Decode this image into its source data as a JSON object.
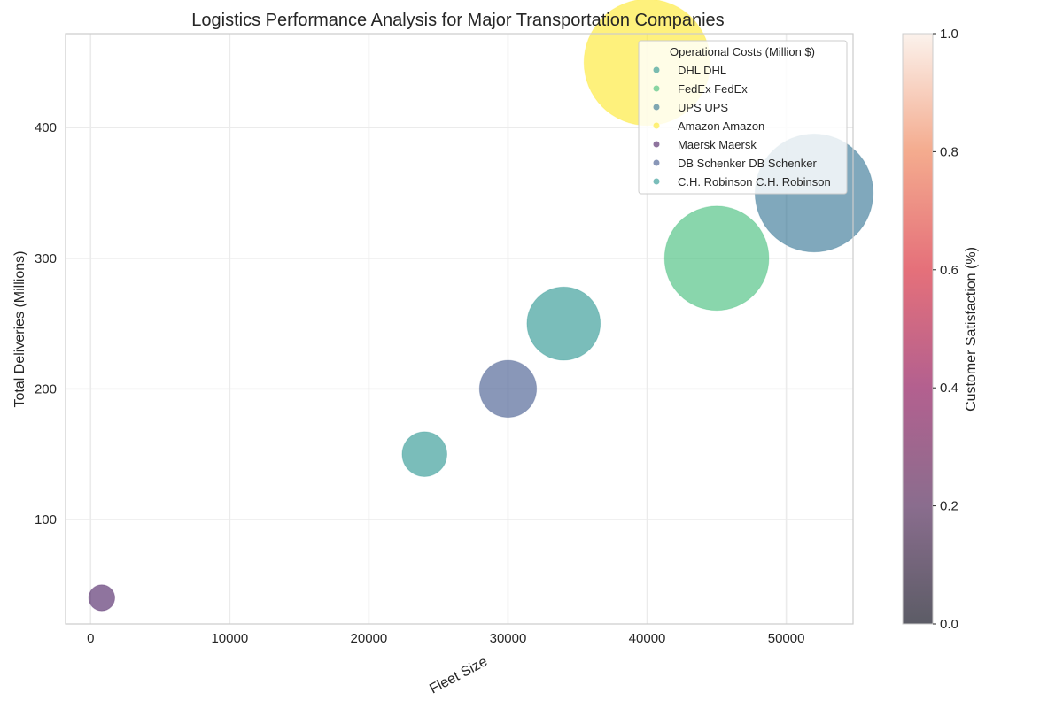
{
  "chart_data": {
    "type": "scatter",
    "title": "Logistics Performance Analysis for Major Transportation Companies",
    "xlabel": "Fleet Size",
    "ylabel": "Total Deliveries (Millions)",
    "xlim": [
      -1800,
      54800
    ],
    "ylim": [
      20,
      472
    ],
    "x_ticks": [
      0,
      10000,
      20000,
      30000,
      40000,
      50000
    ],
    "y_ticks": [
      100,
      200,
      300,
      400
    ],
    "grid": true,
    "legend": {
      "title": "Operational Costs (Million $)",
      "placement": "top-right",
      "entries": [
        "DHL DHL",
        "FedEx FedEx",
        "UPS UPS",
        "Amazon Amazon",
        "Maersk Maersk",
        "DB Schenker DB Schenker",
        "C.H. Robinson C.H. Robinson"
      ]
    },
    "colorbar": {
      "label": "Customer Satisfaction (%)",
      "ticks": [
        0.0,
        0.2,
        0.4,
        0.6,
        0.8,
        1.0
      ],
      "tick_labels": [
        "0.0",
        "0.2",
        "0.4",
        "0.6",
        "0.8",
        "1.0"
      ],
      "range": [
        0.0,
        1.0
      ]
    },
    "series": [
      {
        "name": "DHL DHL",
        "x": 24000,
        "y": 150,
        "size_rel": 0.55,
        "color": "#21918c"
      },
      {
        "name": "FedEx FedEx",
        "x": 45000,
        "y": 300,
        "size_rel": 1.28,
        "color": "#3bba75"
      },
      {
        "name": "UPS UPS",
        "x": 52000,
        "y": 350,
        "size_rel": 1.45,
        "color": "#2c6e90"
      },
      {
        "name": "Amazon Amazon",
        "x": 40000,
        "y": 450,
        "size_rel": 1.55,
        "color": "#fde725"
      },
      {
        "name": "Maersk Maersk",
        "x": 800,
        "y": 40,
        "size_rel": 0.32,
        "color": "#44175e"
      },
      {
        "name": "DB Schenker DB Schenker",
        "x": 30000,
        "y": 200,
        "size_rel": 0.7,
        "color": "#3b5288"
      },
      {
        "name": "C.H. Robinson C.H. Robinson",
        "x": 34000,
        "y": 250,
        "size_rel": 0.9,
        "color": "#21918c"
      }
    ]
  }
}
